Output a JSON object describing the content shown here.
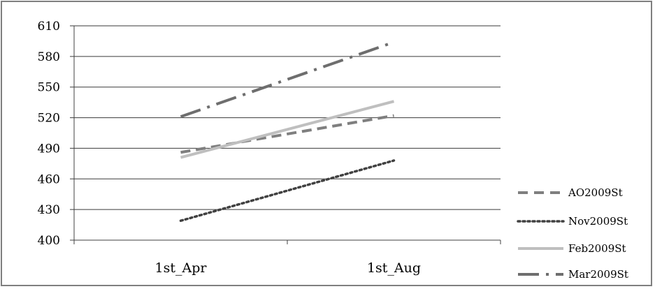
{
  "chart_data": {
    "type": "line",
    "title": "",
    "xlabel": "",
    "ylabel": "",
    "categories": [
      "1st_Apr",
      "1st_Aug"
    ],
    "ylim": [
      400,
      610
    ],
    "yticks": [
      400,
      430,
      460,
      490,
      520,
      550,
      580,
      610
    ],
    "grid": true,
    "legend_position": "right",
    "series": [
      {
        "name": "AO2009St",
        "values": [
          486,
          522
        ],
        "color": "#7f7f7f",
        "dash": "dashed"
      },
      {
        "name": "Nov2009St",
        "values": [
          419,
          478
        ],
        "color": "#404040",
        "dash": "dotted"
      },
      {
        "name": "Feb2009St",
        "values": [
          481,
          536
        ],
        "color": "#bfbfbf",
        "dash": "solid"
      },
      {
        "name": "Mar2009St",
        "values": [
          521,
          594
        ],
        "color": "#6e6e6e",
        "dash": "dash-dot"
      }
    ]
  }
}
